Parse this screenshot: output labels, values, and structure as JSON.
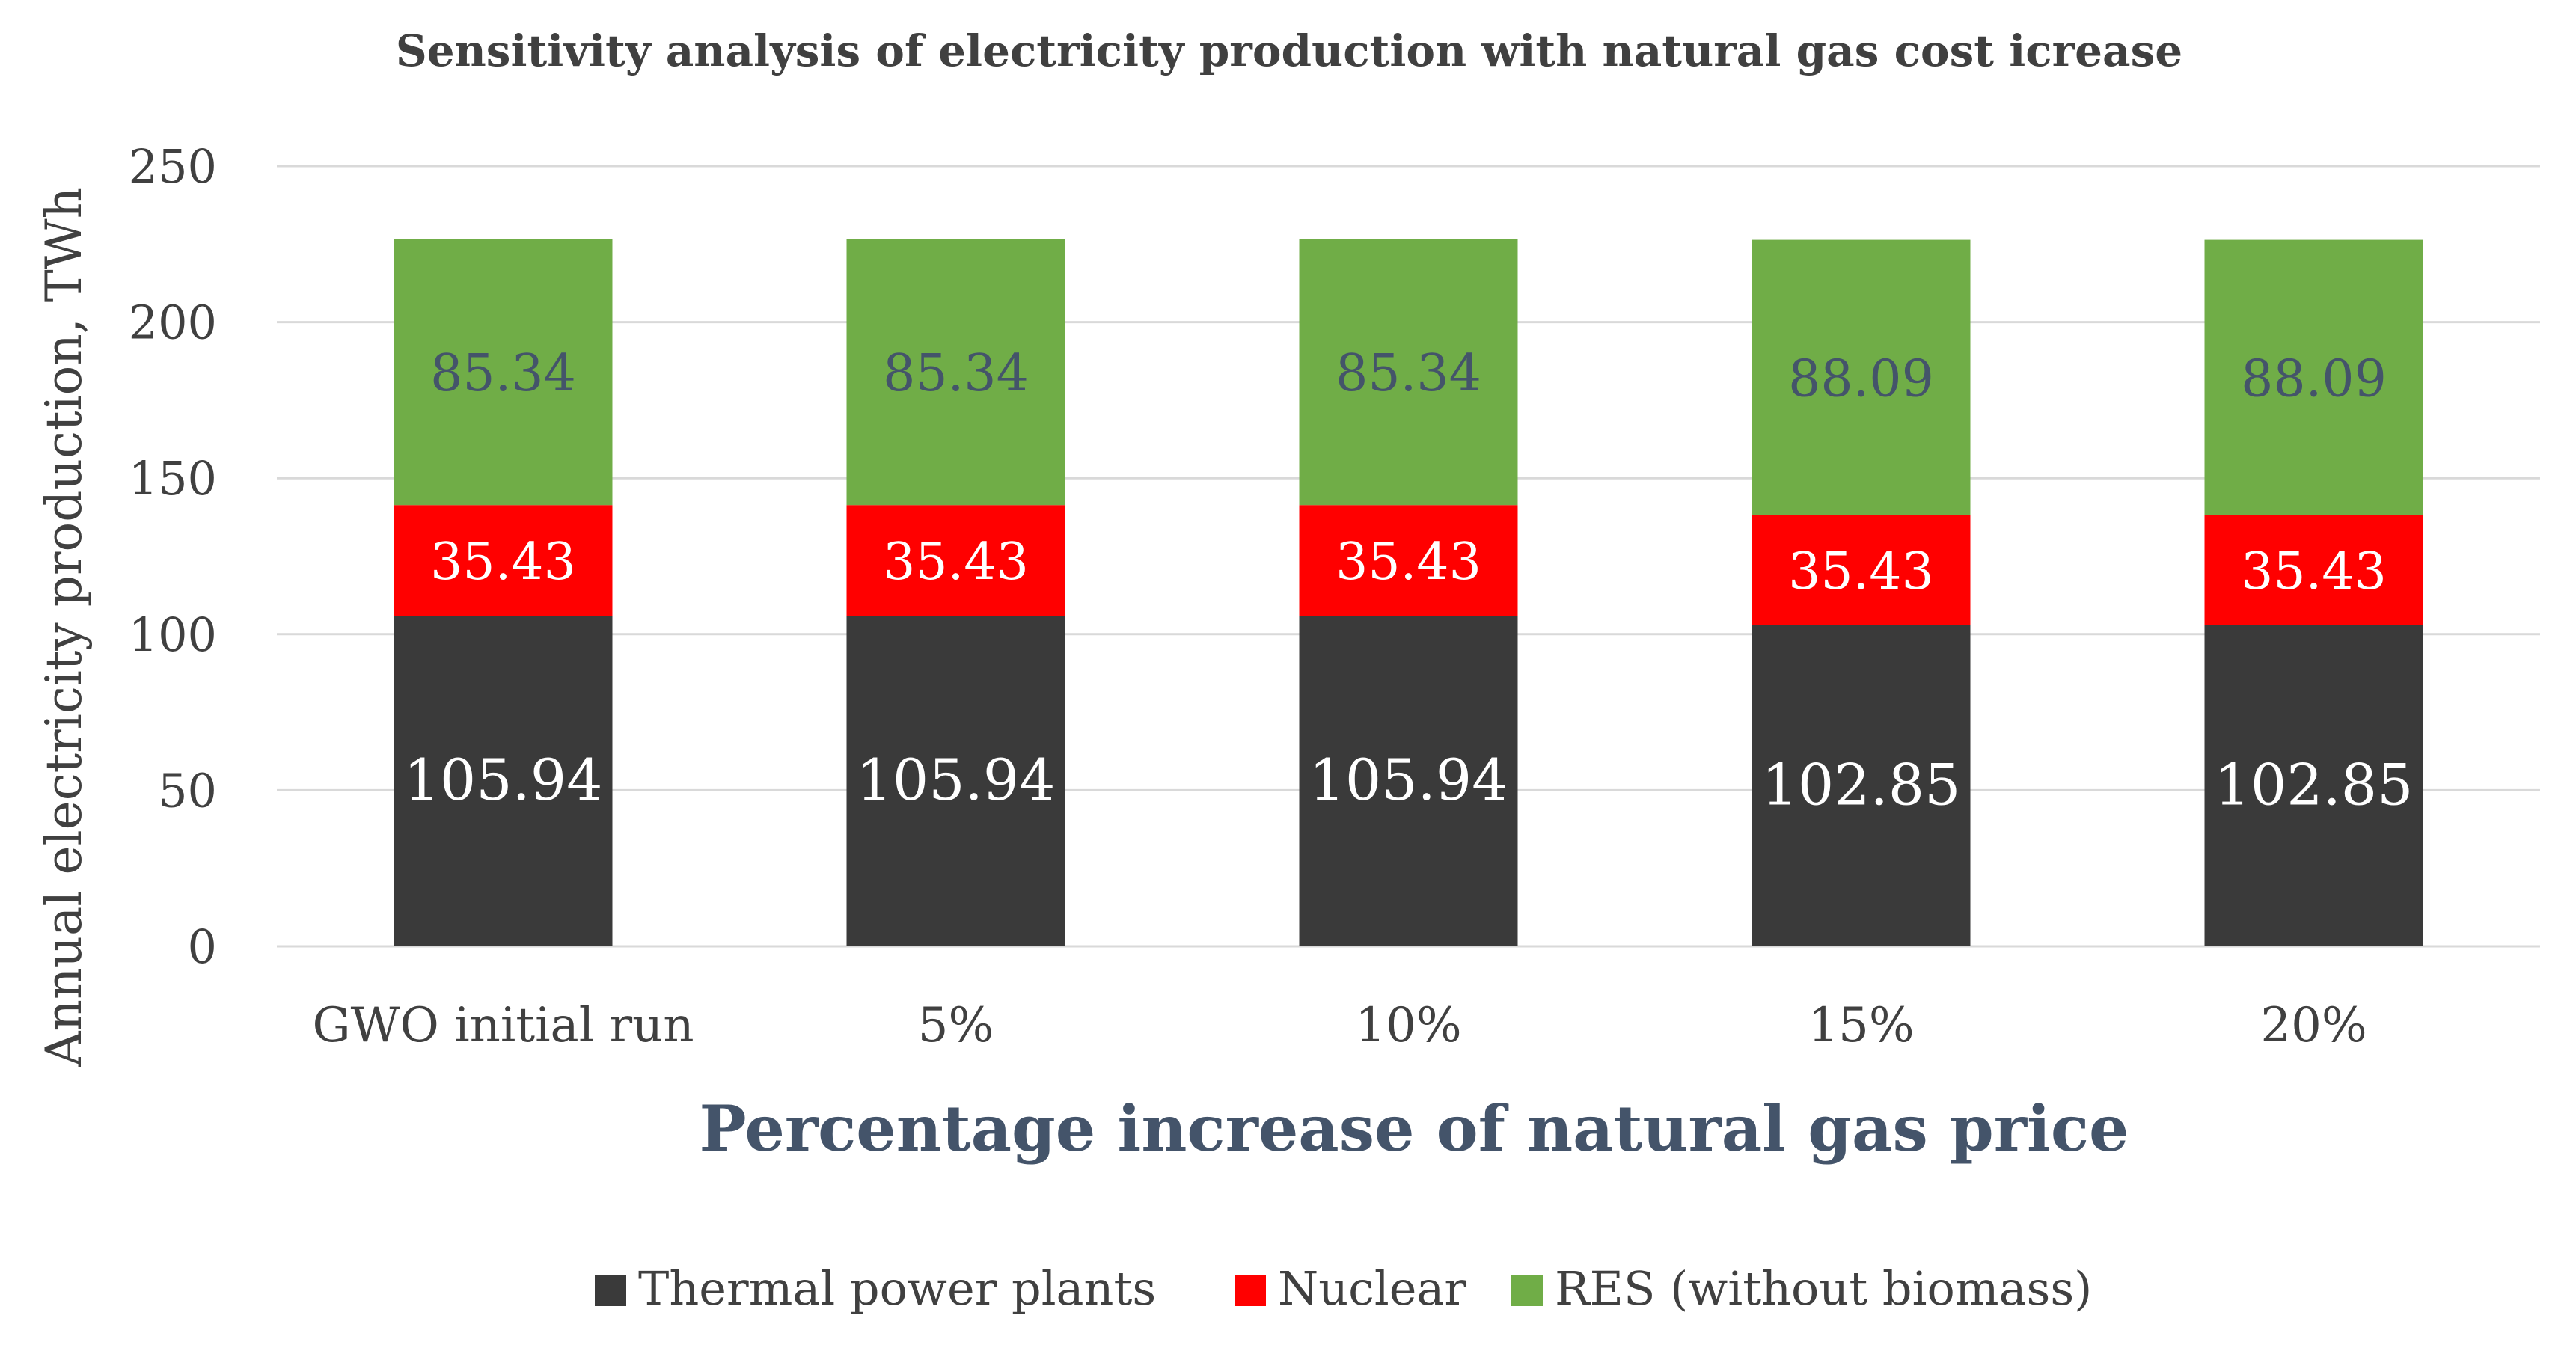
{
  "chart_data": {
    "type": "bar",
    "stacked": true,
    "title": "Sensitivity analysis of electricity production with natural gas cost icrease",
    "xlabel": "Percentage increase of natural gas price",
    "ylabel": "Annual electricity production, TWh",
    "ylim": [
      0,
      250
    ],
    "yticks": [
      0,
      50,
      100,
      150,
      200,
      250
    ],
    "grid": true,
    "legend_position": "bottom",
    "categories": [
      "GWO initial run",
      "5%",
      "10%",
      "15%",
      "20%"
    ],
    "series": [
      {
        "name": "Thermal power plants",
        "color": "#3A3A3A",
        "label_color": "#FFFFFF",
        "values": [
          105.94,
          105.94,
          105.94,
          102.85,
          102.85
        ],
        "labels": [
          "105.94",
          "105.94",
          "105.94",
          "102.85",
          "102.85"
        ]
      },
      {
        "name": "Nuclear",
        "color": "#FF0000",
        "label_color": "#FFFFFF",
        "values": [
          35.43,
          35.43,
          35.43,
          35.43,
          35.43
        ],
        "labels": [
          "35.43",
          "35.43",
          "35.43",
          "35.43",
          "35.43"
        ]
      },
      {
        "name": "RES (without biomass)",
        "color": "#70AD47",
        "label_color": "#44546A",
        "values": [
          85.34,
          85.34,
          85.34,
          88.09,
          88.09
        ],
        "labels": [
          "85.34",
          "85.34",
          "85.34",
          "88.09",
          "88.09"
        ]
      }
    ]
  }
}
